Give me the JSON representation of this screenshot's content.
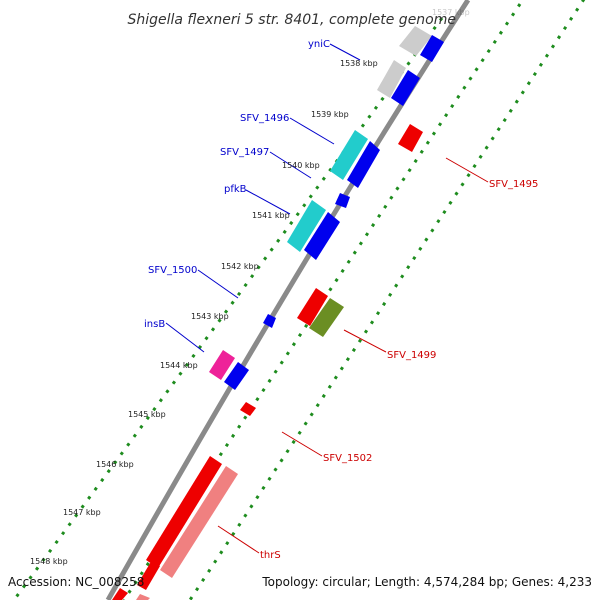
{
  "title": "Shigella flexneri 5 str. 8401, complete genome",
  "accession": "Accession: NC_008258",
  "topology": "Topology: circular; Length: 4,574,284 bp; Genes: 4,233",
  "colors": {
    "backbone": "#7f7f7f",
    "dots": "#1e8c1e",
    "forward_label": "#0000cc",
    "reverse_label": "#cc0000",
    "blue": "#0000ee",
    "cyan": "#22cccc",
    "gray": "#cccccc",
    "red": "#ee0000",
    "olive": "#6b8e23",
    "pink": "#ee2299",
    "salmon": "#f08080"
  },
  "ticks": [
    "1537 kbp",
    "1538 kbp",
    "1539 kbp",
    "1540 kbp",
    "1541 kbp",
    "1542 kbp",
    "1543 kbp",
    "1544 kbp",
    "1545 kbp",
    "1546 kbp",
    "1547 kbp",
    "1548 kbp"
  ],
  "forward_labels": [
    "yniC",
    "SFV_1496",
    "SFV_1497",
    "pfkB",
    "SFV_1500",
    "insB"
  ],
  "reverse_labels": [
    "SFV_1495",
    "SFV_1499",
    "SFV_1502",
    "thrS"
  ]
}
